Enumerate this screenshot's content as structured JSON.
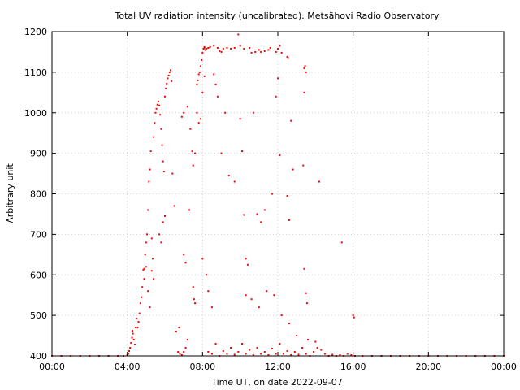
{
  "chart_data": {
    "type": "scatter",
    "title": "Total UV radiation intensity (uncalibrated). Metsähovi Radio Observatory",
    "xlabel": "Time UT, on date 2022-09-07",
    "ylabel": "Arbitrary unit",
    "x_unit": "hours UT",
    "xlim": [
      0,
      24
    ],
    "ylim": [
      400,
      1200
    ],
    "x_ticks": [
      {
        "value": 0,
        "label": "00:00"
      },
      {
        "value": 4,
        "label": "04:00"
      },
      {
        "value": 8,
        "label": "08:00"
      },
      {
        "value": 12,
        "label": "12:00"
      },
      {
        "value": 16,
        "label": "16:00"
      },
      {
        "value": 20,
        "label": "20:00"
      },
      {
        "value": 24,
        "label": "00:00"
      }
    ],
    "y_ticks": [
      400,
      500,
      600,
      700,
      800,
      900,
      1000,
      1100,
      1200
    ],
    "grid": true,
    "legend": "none",
    "marker_color": "#ff0000",
    "series": [
      {
        "points": [
          [
            0.0,
            400
          ],
          [
            0.5,
            400
          ],
          [
            1.0,
            400
          ],
          [
            1.5,
            400
          ],
          [
            2.0,
            400
          ],
          [
            2.5,
            400
          ],
          [
            3.0,
            400
          ],
          [
            3.5,
            400
          ],
          [
            3.8,
            400
          ],
          [
            4.0,
            402
          ],
          [
            4.05,
            405
          ],
          [
            4.1,
            412
          ],
          [
            4.15,
            420
          ],
          [
            4.2,
            432
          ],
          [
            4.25,
            445
          ],
          [
            4.28,
            462
          ],
          [
            4.3,
            455
          ],
          [
            4.35,
            440
          ],
          [
            4.4,
            428
          ],
          [
            4.45,
            470
          ],
          [
            4.5,
            492
          ],
          [
            4.55,
            470
          ],
          [
            4.6,
            484
          ],
          [
            4.65,
            505
          ],
          [
            4.7,
            530
          ],
          [
            4.75,
            545
          ],
          [
            4.8,
            570
          ],
          [
            4.85,
            612
          ],
          [
            4.9,
            590
          ],
          [
            4.95,
            650
          ],
          [
            5.0,
            680
          ],
          [
            5.05,
            700
          ],
          [
            5.1,
            760
          ],
          [
            5.15,
            830
          ],
          [
            5.2,
            860
          ],
          [
            5.25,
            905
          ],
          [
            5.3,
            690
          ],
          [
            5.35,
            640
          ],
          [
            5.4,
            940
          ],
          [
            5.45,
            975
          ],
          [
            5.5,
            1000
          ],
          [
            5.55,
            1010
          ],
          [
            5.6,
            1020
          ],
          [
            5.65,
            1028
          ],
          [
            5.7,
            1018
          ],
          [
            5.75,
            995
          ],
          [
            5.8,
            960
          ],
          [
            5.85,
            920
          ],
          [
            5.9,
            880
          ],
          [
            5.95,
            855
          ],
          [
            6.0,
            1040
          ],
          [
            6.05,
            1060
          ],
          [
            6.1,
            1072
          ],
          [
            6.15,
            1085
          ],
          [
            6.2,
            1092
          ],
          [
            6.25,
            1100
          ],
          [
            6.3,
            1105
          ],
          [
            6.35,
            1078
          ],
          [
            6.4,
            850
          ],
          [
            6.5,
            770
          ],
          [
            4.9,
            615
          ],
          [
            5.0,
            620
          ],
          [
            5.1,
            560
          ],
          [
            5.2,
            520
          ],
          [
            5.3,
            610
          ],
          [
            5.4,
            590
          ],
          [
            5.9,
            730
          ],
          [
            6.0,
            745
          ],
          [
            5.8,
            680
          ],
          [
            5.7,
            700
          ],
          [
            6.6,
            460
          ],
          [
            6.7,
            410
          ],
          [
            6.8,
            405
          ],
          [
            6.9,
            402
          ],
          [
            7.0,
            410
          ],
          [
            7.1,
            420
          ],
          [
            6.75,
            470
          ],
          [
            7.2,
            440
          ],
          [
            6.9,
            990
          ],
          [
            7.0,
            1000
          ],
          [
            7.2,
            1015
          ],
          [
            7.35,
            960
          ],
          [
            7.5,
            570
          ],
          [
            7.55,
            540
          ],
          [
            7.6,
            530
          ],
          [
            7.0,
            650
          ],
          [
            7.1,
            630
          ],
          [
            7.3,
            760
          ],
          [
            7.45,
            905
          ],
          [
            7.5,
            870
          ],
          [
            7.7,
            1070
          ],
          [
            7.75,
            1080
          ],
          [
            7.8,
            1095
          ],
          [
            7.85,
            1100
          ],
          [
            7.9,
            1115
          ],
          [
            7.95,
            1130
          ],
          [
            8.0,
            1148
          ],
          [
            8.05,
            1158
          ],
          [
            8.1,
            1160
          ],
          [
            8.15,
            1155
          ],
          [
            7.8,
            975
          ],
          [
            7.9,
            985
          ],
          [
            8.0,
            1050
          ],
          [
            8.1,
            1090
          ],
          [
            7.7,
            1000
          ],
          [
            7.6,
            900
          ],
          [
            8.0,
            640
          ],
          [
            8.2,
            600
          ],
          [
            8.3,
            560
          ],
          [
            8.5,
            520
          ],
          [
            8.1,
            1162
          ],
          [
            8.2,
            1158
          ],
          [
            8.3,
            1160
          ],
          [
            8.4,
            1162
          ],
          [
            8.6,
            1165
          ],
          [
            8.8,
            1160
          ],
          [
            8.9,
            1152
          ],
          [
            9.0,
            1150
          ],
          [
            9.1,
            1158
          ],
          [
            9.3,
            1160
          ],
          [
            9.5,
            1158
          ],
          [
            9.7,
            1160
          ],
          [
            9.9,
            1193
          ],
          [
            10.0,
            1165
          ],
          [
            10.2,
            1158
          ],
          [
            10.5,
            1160
          ],
          [
            10.6,
            1148
          ],
          [
            10.8,
            1150
          ],
          [
            11.0,
            1155
          ],
          [
            11.1,
            1150
          ],
          [
            11.3,
            1152
          ],
          [
            11.5,
            1155
          ],
          [
            11.6,
            1160
          ],
          [
            11.9,
            1150
          ],
          [
            12.0,
            1158
          ],
          [
            12.1,
            1165
          ],
          [
            12.2,
            1148
          ],
          [
            12.5,
            1138
          ],
          [
            12.55,
            1135
          ],
          [
            13.4,
            1110
          ],
          [
            13.45,
            1115
          ],
          [
            13.5,
            1100
          ],
          [
            8.6,
            1095
          ],
          [
            8.7,
            1070
          ],
          [
            8.8,
            1040
          ],
          [
            9.2,
            1000
          ],
          [
            9.0,
            900
          ],
          [
            9.4,
            845
          ],
          [
            9.7,
            830
          ],
          [
            10.0,
            985
          ],
          [
            10.1,
            905
          ],
          [
            10.2,
            748
          ],
          [
            10.3,
            640
          ],
          [
            10.4,
            625
          ],
          [
            10.7,
            1000
          ],
          [
            10.9,
            750
          ],
          [
            11.1,
            730
          ],
          [
            11.3,
            760
          ],
          [
            11.7,
            800
          ],
          [
            11.9,
            1040
          ],
          [
            12.0,
            1085
          ],
          [
            12.1,
            895
          ],
          [
            12.5,
            795
          ],
          [
            12.6,
            735
          ],
          [
            12.7,
            980
          ],
          [
            12.8,
            860
          ],
          [
            13.4,
            1050
          ],
          [
            13.35,
            870
          ],
          [
            13.4,
            615
          ],
          [
            13.5,
            555
          ],
          [
            13.55,
            530
          ],
          [
            14.2,
            830
          ],
          [
            15.4,
            680
          ],
          [
            16.0,
            500
          ],
          [
            16.05,
            495
          ],
          [
            8.3,
            410
          ],
          [
            8.5,
            405
          ],
          [
            8.7,
            430
          ],
          [
            8.9,
            400
          ],
          [
            9.1,
            412
          ],
          [
            9.3,
            405
          ],
          [
            9.5,
            420
          ],
          [
            9.7,
            403
          ],
          [
            9.9,
            410
          ],
          [
            10.1,
            430
          ],
          [
            10.3,
            405
          ],
          [
            10.5,
            415
          ],
          [
            10.7,
            402
          ],
          [
            10.9,
            420
          ],
          [
            11.1,
            405
          ],
          [
            11.3,
            410
          ],
          [
            11.5,
            402
          ],
          [
            11.7,
            418
          ],
          [
            11.9,
            405
          ],
          [
            12.1,
            430
          ],
          [
            12.3,
            405
          ],
          [
            12.5,
            412
          ],
          [
            12.7,
            402
          ],
          [
            12.9,
            410
          ],
          [
            13.1,
            403
          ],
          [
            13.3,
            420
          ],
          [
            13.5,
            405
          ],
          [
            13.7,
            400
          ],
          [
            13.9,
            410
          ],
          [
            14.1,
            420
          ],
          [
            14.3,
            415
          ],
          [
            14.5,
            405
          ],
          [
            14.7,
            400
          ],
          [
            14.9,
            403
          ],
          [
            15.1,
            400
          ],
          [
            15.3,
            402
          ],
          [
            15.5,
            400
          ],
          [
            15.7,
            405
          ],
          [
            15.9,
            402
          ],
          [
            16.1,
            400
          ],
          [
            16.5,
            400
          ],
          [
            17.0,
            400
          ],
          [
            17.5,
            400
          ],
          [
            18.0,
            400
          ],
          [
            18.5,
            400
          ],
          [
            19.0,
            400
          ],
          [
            19.5,
            400
          ],
          [
            20.0,
            400
          ],
          [
            20.5,
            400
          ],
          [
            21.0,
            400
          ],
          [
            21.5,
            400
          ],
          [
            22.0,
            400
          ],
          [
            22.5,
            400
          ],
          [
            23.0,
            400
          ],
          [
            23.5,
            400
          ],
          [
            24.0,
            400
          ],
          [
            10.3,
            550
          ],
          [
            10.6,
            540
          ],
          [
            11.0,
            520
          ],
          [
            11.4,
            560
          ],
          [
            11.8,
            550
          ],
          [
            12.2,
            500
          ],
          [
            12.6,
            480
          ],
          [
            13.0,
            450
          ],
          [
            13.6,
            440
          ],
          [
            14.0,
            435
          ]
        ]
      }
    ]
  }
}
